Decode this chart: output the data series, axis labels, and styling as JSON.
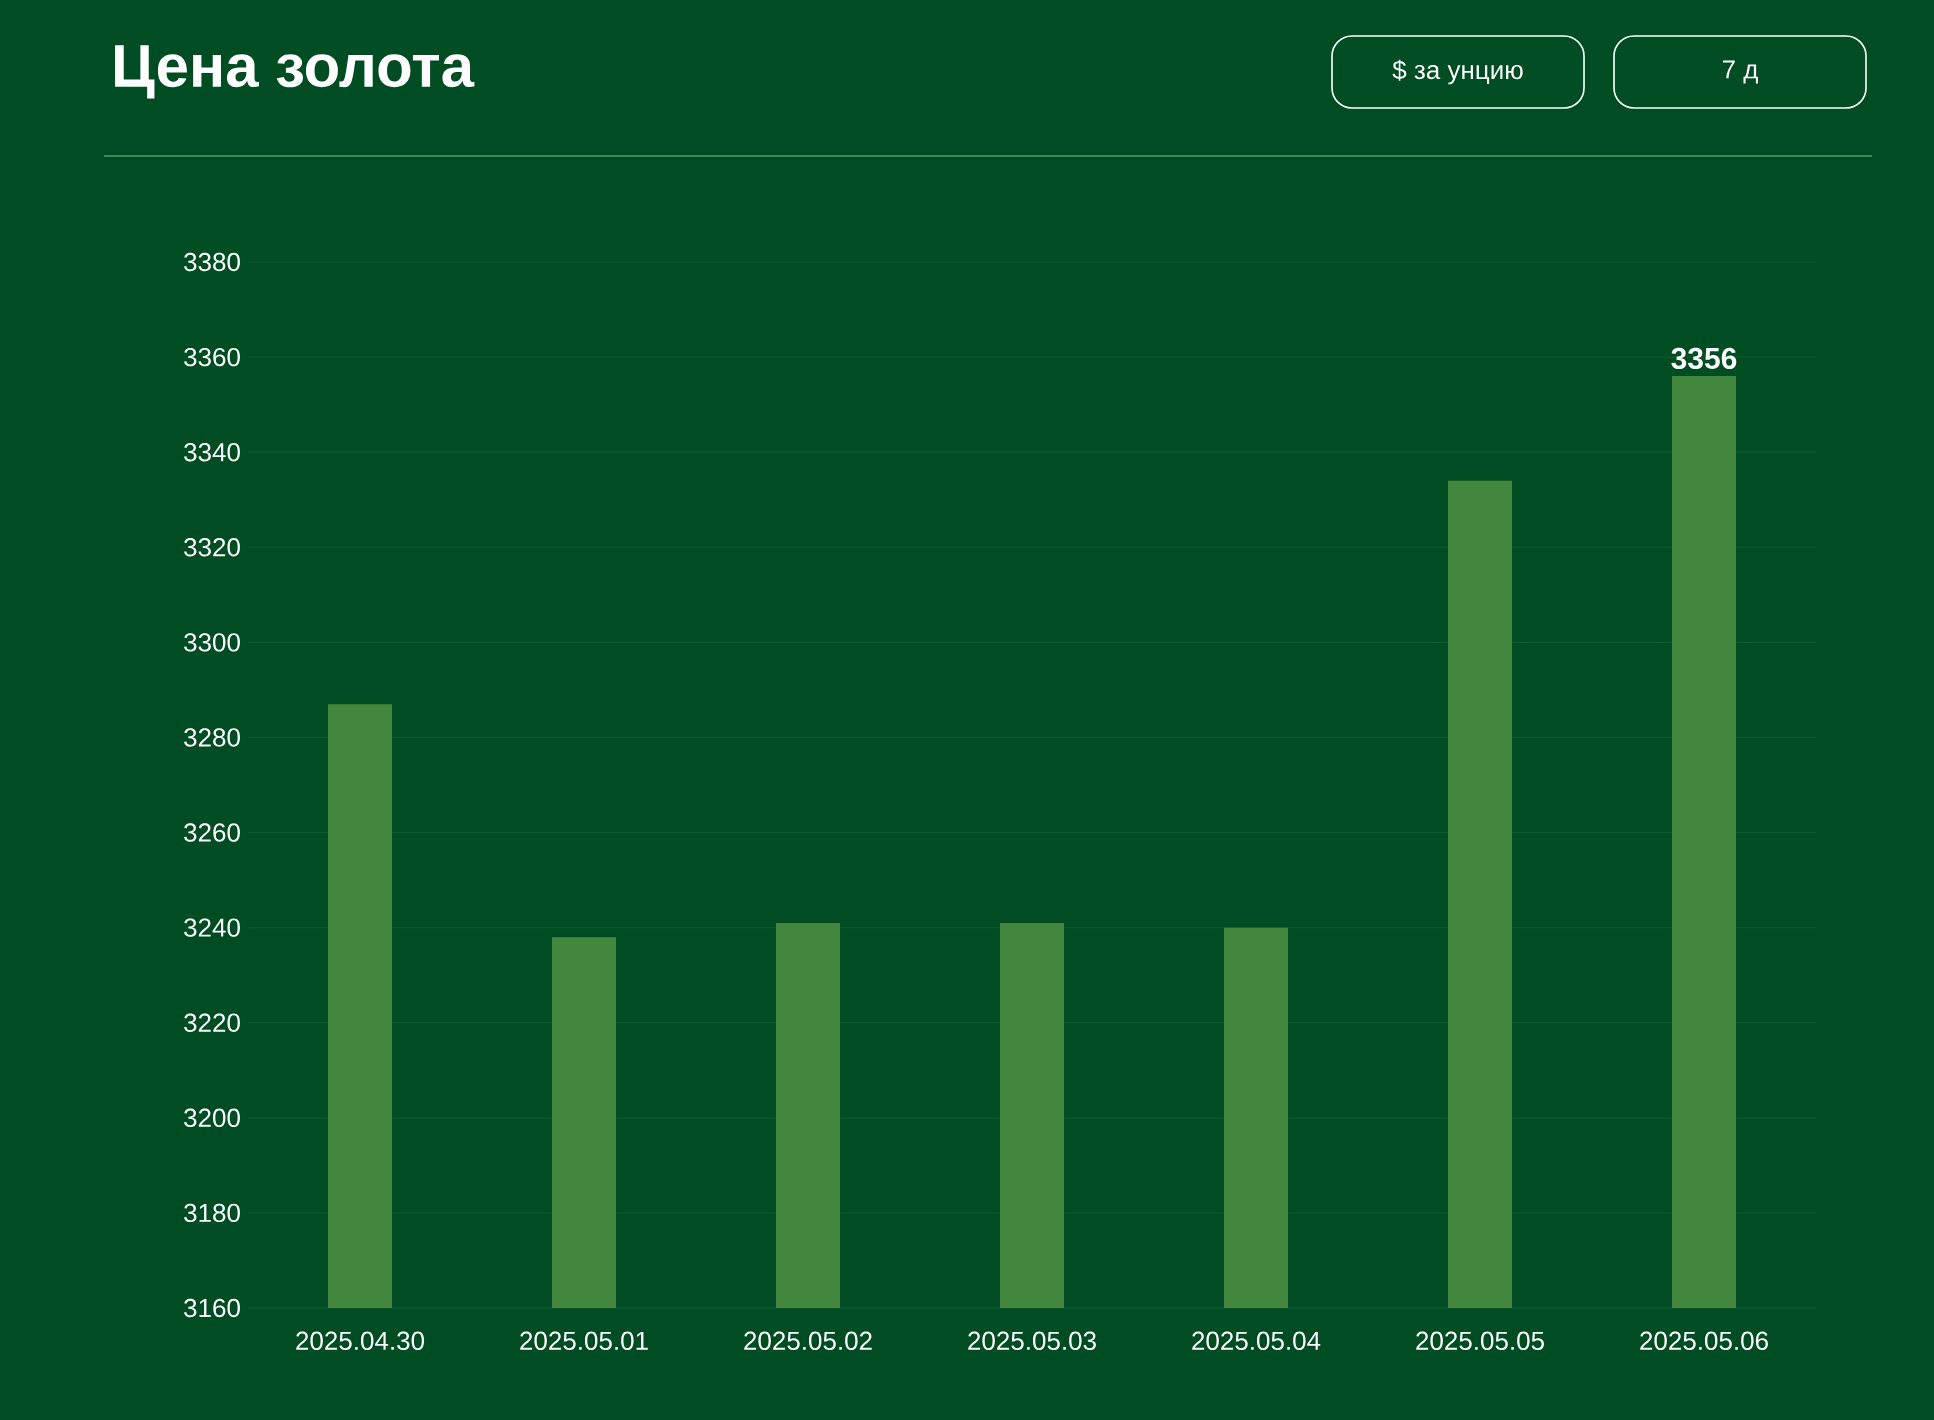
{
  "chart_data": {
    "type": "bar",
    "title": "Цена золота",
    "annotations": [
      "$ за унцию",
      "7 д"
    ],
    "categories": [
      "2025.04.30",
      "2025.05.01",
      "2025.05.02",
      "2025.05.03",
      "2025.05.04",
      "2025.05.05",
      "2025.05.06"
    ],
    "values": [
      3287,
      3238,
      3241,
      3241,
      3240,
      3334,
      3356
    ],
    "value_labels": [
      null,
      null,
      null,
      null,
      null,
      null,
      "3356"
    ],
    "color": "#43873e",
    "ylim": [
      3160,
      3380
    ],
    "yticks": [
      3160,
      3180,
      3200,
      3220,
      3240,
      3260,
      3280,
      3300,
      3320,
      3340,
      3360,
      3380
    ],
    "grid": "y"
  }
}
